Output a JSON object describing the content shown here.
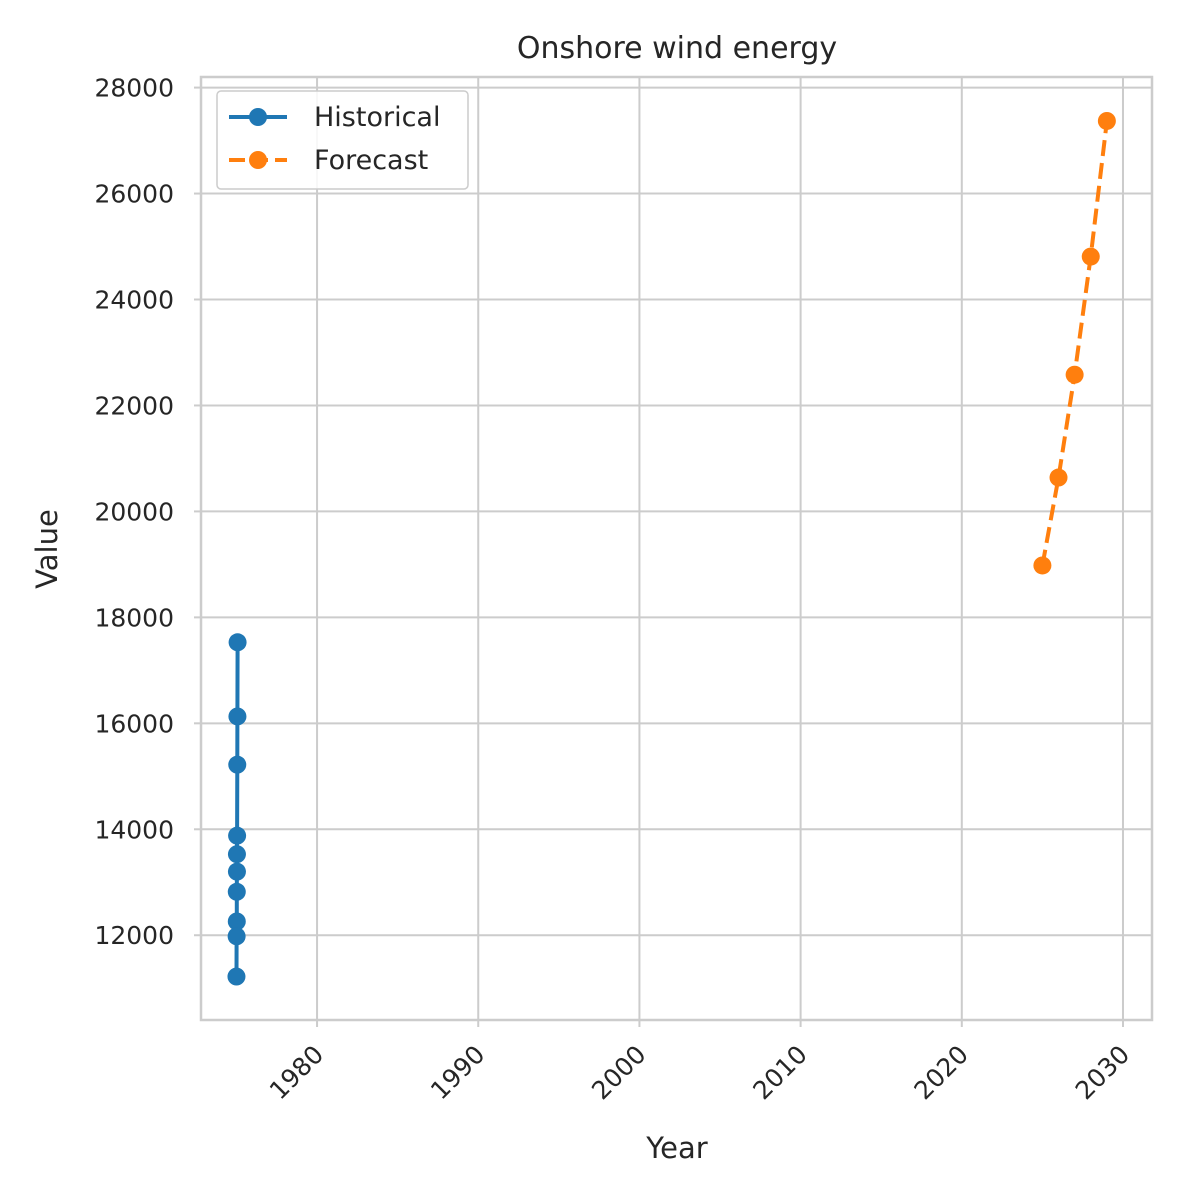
{
  "chart_data": {
    "type": "line",
    "title": "Onshore wind energy",
    "xlabel": "Year",
    "ylabel": "Value",
    "xlim": [
      1972.8,
      2031.8
    ],
    "ylim": [
      10400,
      28200
    ],
    "x_ticks": [
      1980,
      1990,
      2000,
      2010,
      2020,
      2030
    ],
    "y_ticks": [
      12000,
      14000,
      16000,
      18000,
      20000,
      22000,
      24000,
      26000
    ],
    "y_tick_labels_extra": [
      28000
    ],
    "grid": true,
    "legend_position": "top-left",
    "series": [
      {
        "name": "Historical",
        "color": "#1f77b4",
        "style": "solid",
        "marker": "circle",
        "x": [
          1975.07,
          1975.06,
          1975.05,
          1975.04,
          1975.03,
          1975.03,
          1975.02,
          1975.02,
          1975.01,
          1975.0
        ],
        "y": [
          17530,
          16130,
          15220,
          13880,
          13530,
          13200,
          12820,
          12260,
          11980,
          11220
        ]
      },
      {
        "name": "Forecast",
        "color": "#ff7f0e",
        "style": "dashed",
        "marker": "circle",
        "x": [
          2025,
          2026,
          2027,
          2028,
          2029
        ],
        "y": [
          18980,
          20640,
          22580,
          24810,
          27370
        ]
      }
    ]
  }
}
